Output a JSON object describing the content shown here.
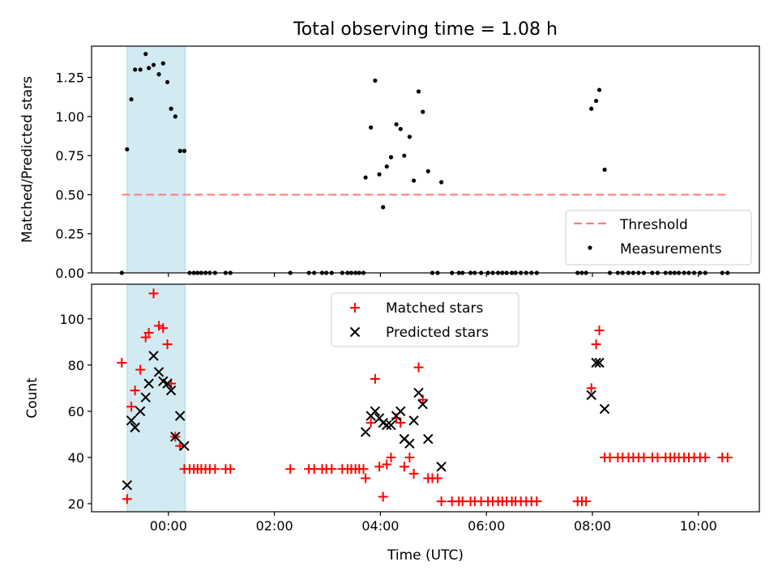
{
  "title": "Total observing time = 1.08 h",
  "chart_data": [
    {
      "type": "scatter",
      "ylabel": "Matched/Predicted stars",
      "xlabel": "",
      "xlim": [
        -1.45,
        11.15
      ],
      "ylim": [
        0,
        1.45
      ],
      "x_ticks": [
        0,
        2,
        4,
        6,
        8,
        10
      ],
      "y_ticks": [
        0.0,
        0.25,
        0.5,
        0.75,
        1.0,
        1.25
      ],
      "y_tick_labels": [
        "0.00",
        "0.25",
        "0.50",
        "0.75",
        "1.00",
        "1.25"
      ],
      "shaded_region": {
        "x": [
          -0.78,
          0.32
        ],
        "color": "#add8e6"
      },
      "threshold": {
        "name": "Threshold",
        "y": 0.5,
        "x": [
          -0.88,
          10.55
        ],
        "color": "#ff7f7f"
      },
      "series": [
        {
          "name": "Measurements",
          "color": "#000000",
          "points": [
            [
              -0.88,
              0.0
            ],
            [
              -0.78,
              0.79
            ],
            [
              -0.7,
              1.11
            ],
            [
              -0.63,
              1.3
            ],
            [
              -0.53,
              1.3
            ],
            [
              -0.43,
              1.4
            ],
            [
              -0.37,
              1.31
            ],
            [
              -0.28,
              1.33
            ],
            [
              -0.18,
              1.27
            ],
            [
              -0.1,
              1.34
            ],
            [
              -0.02,
              1.22
            ],
            [
              0.05,
              1.05
            ],
            [
              0.13,
              1.0
            ],
            [
              0.22,
              0.78
            ],
            [
              0.3,
              0.78
            ],
            [
              0.4,
              0.0
            ],
            [
              0.48,
              0.0
            ],
            [
              0.55,
              0.0
            ],
            [
              0.62,
              0.0
            ],
            [
              0.7,
              0.0
            ],
            [
              0.78,
              0.0
            ],
            [
              0.88,
              0.0
            ],
            [
              1.08,
              0.0
            ],
            [
              1.17,
              0.0
            ],
            [
              2.3,
              0.0
            ],
            [
              2.65,
              0.0
            ],
            [
              2.75,
              0.0
            ],
            [
              2.9,
              0.0
            ],
            [
              2.98,
              0.0
            ],
            [
              3.08,
              0.0
            ],
            [
              3.28,
              0.0
            ],
            [
              3.38,
              0.0
            ],
            [
              3.45,
              0.0
            ],
            [
              3.53,
              0.0
            ],
            [
              3.6,
              0.0
            ],
            [
              3.68,
              0.0
            ],
            [
              3.72,
              0.61
            ],
            [
              3.82,
              0.93
            ],
            [
              3.9,
              1.23
            ],
            [
              3.98,
              0.63
            ],
            [
              4.05,
              0.42
            ],
            [
              4.12,
              0.68
            ],
            [
              4.2,
              0.74
            ],
            [
              4.3,
              0.95
            ],
            [
              4.38,
              0.92
            ],
            [
              4.45,
              0.75
            ],
            [
              4.55,
              0.87
            ],
            [
              4.63,
              0.59
            ],
            [
              4.72,
              1.16
            ],
            [
              4.8,
              1.03
            ],
            [
              4.9,
              0.65
            ],
            [
              4.98,
              0.0
            ],
            [
              5.08,
              0.0
            ],
            [
              5.15,
              0.58
            ],
            [
              5.35,
              0.0
            ],
            [
              5.48,
              0.0
            ],
            [
              5.55,
              0.0
            ],
            [
              5.7,
              0.0
            ],
            [
              5.78,
              0.0
            ],
            [
              5.9,
              0.0
            ],
            [
              6.03,
              0.0
            ],
            [
              6.12,
              0.0
            ],
            [
              6.22,
              0.0
            ],
            [
              6.3,
              0.0
            ],
            [
              6.38,
              0.0
            ],
            [
              6.48,
              0.0
            ],
            [
              6.55,
              0.0
            ],
            [
              6.65,
              0.0
            ],
            [
              6.75,
              0.0
            ],
            [
              6.85,
              0.0
            ],
            [
              6.95,
              0.0
            ],
            [
              7.72,
              0.0
            ],
            [
              7.8,
              0.0
            ],
            [
              7.88,
              0.0
            ],
            [
              7.98,
              1.05
            ],
            [
              8.07,
              1.1
            ],
            [
              8.13,
              1.17
            ],
            [
              8.23,
              0.66
            ],
            [
              8.33,
              0.0
            ],
            [
              8.48,
              0.0
            ],
            [
              8.57,
              0.0
            ],
            [
              8.68,
              0.0
            ],
            [
              8.77,
              0.0
            ],
            [
              8.87,
              0.0
            ],
            [
              8.97,
              0.0
            ],
            [
              9.13,
              0.0
            ],
            [
              9.23,
              0.0
            ],
            [
              9.38,
              0.0
            ],
            [
              9.47,
              0.0
            ],
            [
              9.55,
              0.0
            ],
            [
              9.63,
              0.0
            ],
            [
              9.73,
              0.0
            ],
            [
              9.82,
              0.0
            ],
            [
              9.92,
              0.0
            ],
            [
              10.03,
              0.0
            ],
            [
              10.13,
              0.0
            ],
            [
              10.45,
              0.0
            ],
            [
              10.55,
              0.0
            ]
          ]
        }
      ],
      "legend": {
        "placement": "lower right",
        "entries": [
          "Threshold",
          "Measurements"
        ]
      }
    },
    {
      "type": "scatter",
      "ylabel": "Count",
      "xlabel": "Time (UTC)",
      "xlim": [
        -1.45,
        11.15
      ],
      "ylim": [
        16.5,
        115
      ],
      "x_ticks": [
        0,
        2,
        4,
        6,
        8,
        10
      ],
      "x_tick_labels": [
        "00:00",
        "02:00",
        "04:00",
        "06:00",
        "08:00",
        "10:00"
      ],
      "y_ticks": [
        20,
        40,
        60,
        80,
        100
      ],
      "y_tick_labels": [
        "20",
        "40",
        "60",
        "80",
        "100"
      ],
      "shaded_region": {
        "x": [
          -0.78,
          0.32
        ],
        "color": "#add8e6"
      },
      "series": [
        {
          "name": "Matched stars",
          "marker": "plus",
          "color": "#ff0000",
          "points": [
            [
              -0.88,
              81
            ],
            [
              -0.78,
              22
            ],
            [
              -0.7,
              62
            ],
            [
              -0.63,
              69
            ],
            [
              -0.53,
              78
            ],
            [
              -0.43,
              92
            ],
            [
              -0.37,
              94
            ],
            [
              -0.28,
              111
            ],
            [
              -0.18,
              97
            ],
            [
              -0.1,
              96
            ],
            [
              -0.02,
              89
            ],
            [
              0.05,
              72
            ],
            [
              0.13,
              49
            ],
            [
              0.22,
              45
            ],
            [
              0.3,
              35
            ],
            [
              0.4,
              35
            ],
            [
              0.48,
              35
            ],
            [
              0.55,
              35
            ],
            [
              0.62,
              35
            ],
            [
              0.7,
              35
            ],
            [
              0.78,
              35
            ],
            [
              0.88,
              35
            ],
            [
              1.08,
              35
            ],
            [
              1.17,
              35
            ],
            [
              2.3,
              35
            ],
            [
              2.65,
              35
            ],
            [
              2.75,
              35
            ],
            [
              2.9,
              35
            ],
            [
              2.98,
              35
            ],
            [
              3.08,
              35
            ],
            [
              3.28,
              35
            ],
            [
              3.38,
              35
            ],
            [
              3.45,
              35
            ],
            [
              3.53,
              35
            ],
            [
              3.6,
              35
            ],
            [
              3.68,
              35
            ],
            [
              3.72,
              31
            ],
            [
              3.82,
              55
            ],
            [
              3.9,
              74
            ],
            [
              3.98,
              36
            ],
            [
              4.05,
              23
            ],
            [
              4.12,
              37
            ],
            [
              4.2,
              40
            ],
            [
              4.3,
              57
            ],
            [
              4.38,
              55
            ],
            [
              4.45,
              36
            ],
            [
              4.55,
              40
            ],
            [
              4.63,
              33
            ],
            [
              4.72,
              79
            ],
            [
              4.8,
              65
            ],
            [
              4.9,
              31
            ],
            [
              4.98,
              31
            ],
            [
              5.08,
              31
            ],
            [
              5.15,
              21
            ],
            [
              5.35,
              21
            ],
            [
              5.48,
              21
            ],
            [
              5.55,
              21
            ],
            [
              5.7,
              21
            ],
            [
              5.78,
              21
            ],
            [
              5.9,
              21
            ],
            [
              6.03,
              21
            ],
            [
              6.12,
              21
            ],
            [
              6.22,
              21
            ],
            [
              6.3,
              21
            ],
            [
              6.38,
              21
            ],
            [
              6.48,
              21
            ],
            [
              6.55,
              21
            ],
            [
              6.65,
              21
            ],
            [
              6.75,
              21
            ],
            [
              6.85,
              21
            ],
            [
              6.95,
              21
            ],
            [
              7.72,
              21
            ],
            [
              7.8,
              21
            ],
            [
              7.88,
              21
            ],
            [
              7.98,
              70
            ],
            [
              8.07,
              89
            ],
            [
              8.13,
              95
            ],
            [
              8.23,
              40
            ],
            [
              8.33,
              40
            ],
            [
              8.48,
              40
            ],
            [
              8.57,
              40
            ],
            [
              8.68,
              40
            ],
            [
              8.77,
              40
            ],
            [
              8.87,
              40
            ],
            [
              8.97,
              40
            ],
            [
              9.13,
              40
            ],
            [
              9.23,
              40
            ],
            [
              9.38,
              40
            ],
            [
              9.47,
              40
            ],
            [
              9.55,
              40
            ],
            [
              9.63,
              40
            ],
            [
              9.73,
              40
            ],
            [
              9.82,
              40
            ],
            [
              9.92,
              40
            ],
            [
              10.03,
              40
            ],
            [
              10.13,
              40
            ],
            [
              10.45,
              40
            ],
            [
              10.55,
              40
            ]
          ]
        },
        {
          "name": "Predicted stars",
          "marker": "x",
          "color": "#000000",
          "points": [
            [
              -0.78,
              28
            ],
            [
              -0.7,
              56
            ],
            [
              -0.63,
              53
            ],
            [
              -0.53,
              60
            ],
            [
              -0.43,
              66
            ],
            [
              -0.37,
              72
            ],
            [
              -0.28,
              84
            ],
            [
              -0.18,
              77
            ],
            [
              -0.1,
              73
            ],
            [
              -0.02,
              72
            ],
            [
              0.05,
              69
            ],
            [
              0.13,
              49
            ],
            [
              0.22,
              58
            ],
            [
              0.3,
              45
            ],
            [
              3.72,
              51
            ],
            [
              3.82,
              58
            ],
            [
              3.9,
              60
            ],
            [
              3.98,
              57
            ],
            [
              4.05,
              55
            ],
            [
              4.12,
              54
            ],
            [
              4.2,
              54
            ],
            [
              4.3,
              58
            ],
            [
              4.38,
              60
            ],
            [
              4.45,
              48
            ],
            [
              4.55,
              46
            ],
            [
              4.63,
              56
            ],
            [
              4.72,
              68
            ],
            [
              4.8,
              63
            ],
            [
              4.9,
              48
            ],
            [
              5.15,
              36
            ],
            [
              7.98,
              67
            ],
            [
              8.07,
              81
            ],
            [
              8.13,
              81
            ],
            [
              8.23,
              61
            ]
          ]
        }
      ],
      "legend": {
        "placement": "upper center",
        "entries": [
          "Matched stars",
          "Predicted stars"
        ]
      }
    }
  ]
}
